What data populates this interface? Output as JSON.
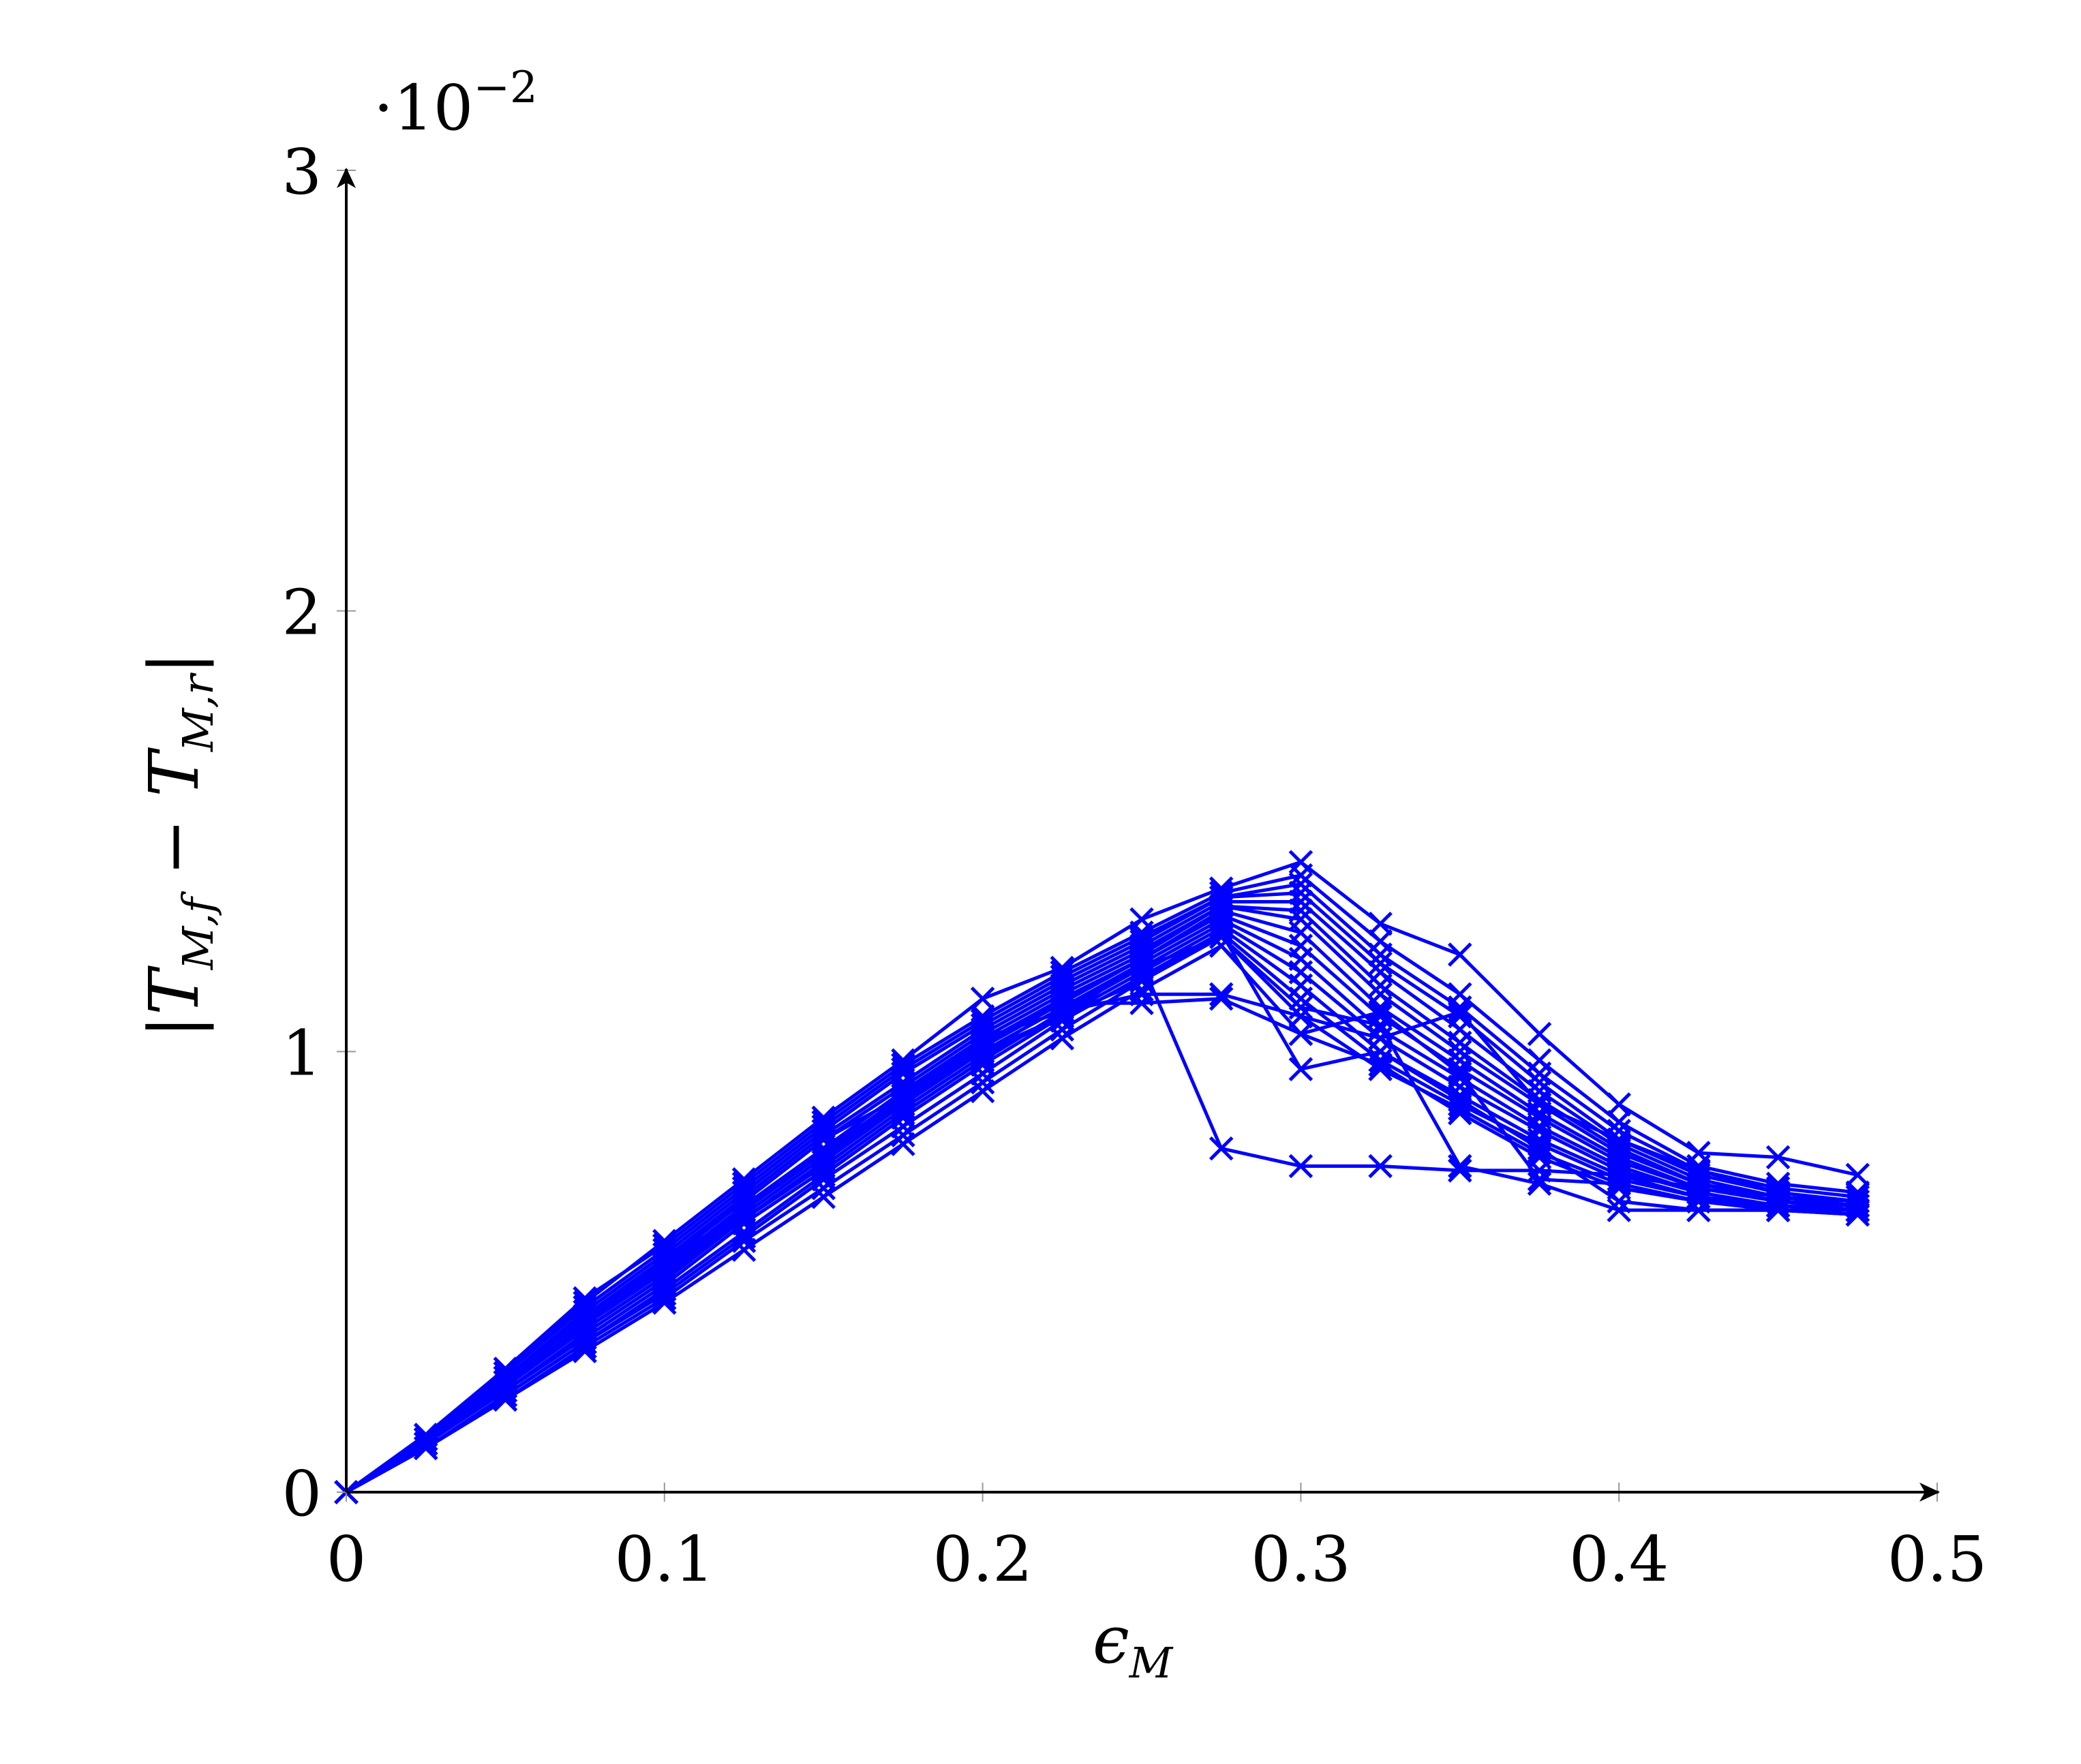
{
  "chart_data": {
    "type": "line",
    "title": "",
    "xlabel": {
      "base": "ϵ",
      "sub": "M"
    },
    "ylabel": {
      "prefix": "|T",
      "sub1": "M,f",
      "middle": " − T",
      "sub2": "M,r",
      "suffix": "|"
    },
    "y_scale_note": {
      "base": "·10",
      "exponent": "−2"
    },
    "xlim": [
      0,
      0.5
    ],
    "ylim": [
      0,
      3
    ],
    "x_ticks": [
      0,
      0.1,
      0.2,
      0.3,
      0.4,
      0.5
    ],
    "x_tick_labels": [
      "0",
      "0.1",
      "0.2",
      "0.3",
      "0.4",
      "0.5"
    ],
    "y_ticks": [
      0,
      1,
      2,
      3
    ],
    "y_tick_labels": [
      "0",
      "1",
      "2",
      "3"
    ],
    "y_multiplier": 0.01,
    "grid": false,
    "legend": "none",
    "line_color": "#0000ff",
    "marker": "x",
    "x": [
      0,
      0.025,
      0.05,
      0.075,
      0.1,
      0.125,
      0.15,
      0.175,
      0.2,
      0.225,
      0.25,
      0.275,
      0.3,
      0.325,
      0.35,
      0.375,
      0.4,
      0.425,
      0.45,
      0.475
    ],
    "series": [
      {
        "values": [
          0,
          0.13,
          0.27,
          0.43,
          0.57,
          0.71,
          0.85,
          0.98,
          1.12,
          1.19,
          1.3,
          1.37,
          1.43,
          1.29,
          1.22,
          1.04,
          0.88,
          0.77,
          0.76,
          0.72
        ]
      },
      {
        "values": [
          0,
          0.13,
          0.28,
          0.44,
          0.56,
          0.7,
          0.84,
          0.97,
          1.08,
          1.18,
          1.27,
          1.36,
          1.4,
          1.25,
          1.13,
          0.98,
          0.84,
          0.74,
          0.7,
          0.68
        ]
      },
      {
        "values": [
          0,
          0.12,
          0.27,
          0.42,
          0.55,
          0.69,
          0.83,
          0.96,
          1.07,
          1.17,
          1.26,
          1.35,
          1.38,
          1.22,
          1.1,
          0.95,
          0.82,
          0.73,
          0.69,
          0.67
        ]
      },
      {
        "values": [
          0,
          0.12,
          0.26,
          0.41,
          0.54,
          0.68,
          0.82,
          0.95,
          1.06,
          1.16,
          1.25,
          1.35,
          1.36,
          1.2,
          1.08,
          0.93,
          0.8,
          0.72,
          0.68,
          0.66
        ]
      },
      {
        "values": [
          0,
          0.12,
          0.26,
          0.4,
          0.53,
          0.67,
          0.81,
          0.93,
          1.05,
          1.15,
          1.24,
          1.34,
          1.34,
          1.18,
          1.05,
          0.91,
          0.79,
          0.71,
          0.67,
          0.66
        ]
      },
      {
        "values": [
          0,
          0.12,
          0.25,
          0.4,
          0.52,
          0.66,
          0.8,
          0.92,
          1.04,
          1.14,
          1.23,
          1.33,
          1.32,
          1.15,
          1.02,
          0.89,
          0.78,
          0.7,
          0.67,
          0.65
        ]
      },
      {
        "values": [
          0,
          0.11,
          0.25,
          0.39,
          0.51,
          0.65,
          0.78,
          0.91,
          1.03,
          1.13,
          1.22,
          1.33,
          1.3,
          1.13,
          1.0,
          0.88,
          0.77,
          0.7,
          0.66,
          0.65
        ]
      },
      {
        "values": [
          0,
          0.11,
          0.24,
          0.38,
          0.5,
          0.64,
          0.77,
          0.9,
          1.02,
          1.12,
          1.21,
          1.32,
          1.27,
          1.1,
          0.98,
          0.86,
          0.76,
          0.69,
          0.66,
          0.65
        ]
      },
      {
        "values": [
          0,
          0.11,
          0.24,
          0.37,
          0.49,
          0.63,
          0.76,
          0.89,
          1.01,
          1.11,
          1.21,
          1.31,
          1.24,
          1.08,
          0.96,
          0.85,
          0.75,
          0.69,
          0.66,
          0.64
        ]
      },
      {
        "values": [
          0,
          0.11,
          0.23,
          0.36,
          0.48,
          0.62,
          0.75,
          0.88,
          1.0,
          1.1,
          1.2,
          1.3,
          1.21,
          1.05,
          0.94,
          0.83,
          0.74,
          0.68,
          0.65,
          0.64
        ]
      },
      {
        "values": [
          0,
          0.11,
          0.23,
          0.35,
          0.47,
          0.61,
          0.73,
          0.86,
          0.98,
          1.09,
          1.19,
          1.29,
          1.18,
          1.03,
          0.92,
          0.82,
          0.73,
          0.68,
          0.65,
          0.64
        ]
      },
      {
        "values": [
          0,
          0.1,
          0.22,
          0.34,
          0.46,
          0.59,
          0.72,
          0.85,
          0.97,
          1.08,
          1.18,
          1.28,
          1.15,
          1.0,
          0.9,
          0.8,
          0.72,
          0.67,
          0.65,
          0.64
        ]
      },
      {
        "values": [
          0,
          0.1,
          0.22,
          0.34,
          0.45,
          0.58,
          0.71,
          0.83,
          0.95,
          1.07,
          1.17,
          1.27,
          1.12,
          0.98,
          0.88,
          0.79,
          0.71,
          0.67,
          0.64,
          0.64
        ]
      },
      {
        "values": [
          0,
          0.1,
          0.21,
          0.33,
          0.44,
          0.57,
          0.69,
          0.81,
          0.93,
          1.05,
          1.16,
          1.26,
          1.08,
          0.96,
          0.87,
          0.77,
          0.7,
          0.66,
          0.64,
          0.63
        ]
      },
      {
        "values": [
          0,
          0.1,
          0.21,
          0.32,
          0.43,
          0.55,
          0.67,
          0.79,
          0.91,
          1.03,
          1.14,
          1.24,
          1.04,
          0.97,
          0.86,
          0.76,
          0.69,
          0.66,
          0.64,
          0.63
        ]
      },
      {
        "values": [
          0,
          0.11,
          0.24,
          0.37,
          0.49,
          0.62,
          0.74,
          0.87,
          0.99,
          1.08,
          1.16,
          1.27,
          0.96,
          1.0,
          0.89,
          0.78,
          0.66,
          0.64,
          0.64,
          0.64
        ]
      },
      {
        "values": [
          0,
          0.12,
          0.25,
          0.38,
          0.5,
          0.63,
          0.76,
          0.88,
          1.0,
          1.1,
          1.19,
          1.26,
          1.1,
          1.06,
          0.74,
          0.7,
          0.64,
          0.64,
          0.64,
          0.64
        ]
      },
      {
        "values": [
          0,
          0.12,
          0.25,
          0.39,
          0.52,
          0.64,
          0.78,
          0.89,
          1.02,
          1.11,
          1.11,
          1.12,
          1.04,
          1.09,
          0.95,
          0.71,
          0.7,
          0.66,
          0.65,
          0.64
        ]
      },
      {
        "values": [
          0,
          0.12,
          0.26,
          0.4,
          0.53,
          0.66,
          0.8,
          0.9,
          1.03,
          1.09,
          1.13,
          1.13,
          1.08,
          1.03,
          1.09,
          0.88,
          0.8,
          0.73,
          0.68,
          0.66
        ]
      },
      {
        "values": [
          0,
          0.11,
          0.25,
          0.38,
          0.51,
          0.64,
          0.77,
          0.89,
          1.0,
          1.08,
          1.2,
          0.78,
          0.74,
          0.74,
          0.73,
          0.73,
          0.72,
          0.69,
          0.66,
          0.65
        ]
      }
    ]
  }
}
